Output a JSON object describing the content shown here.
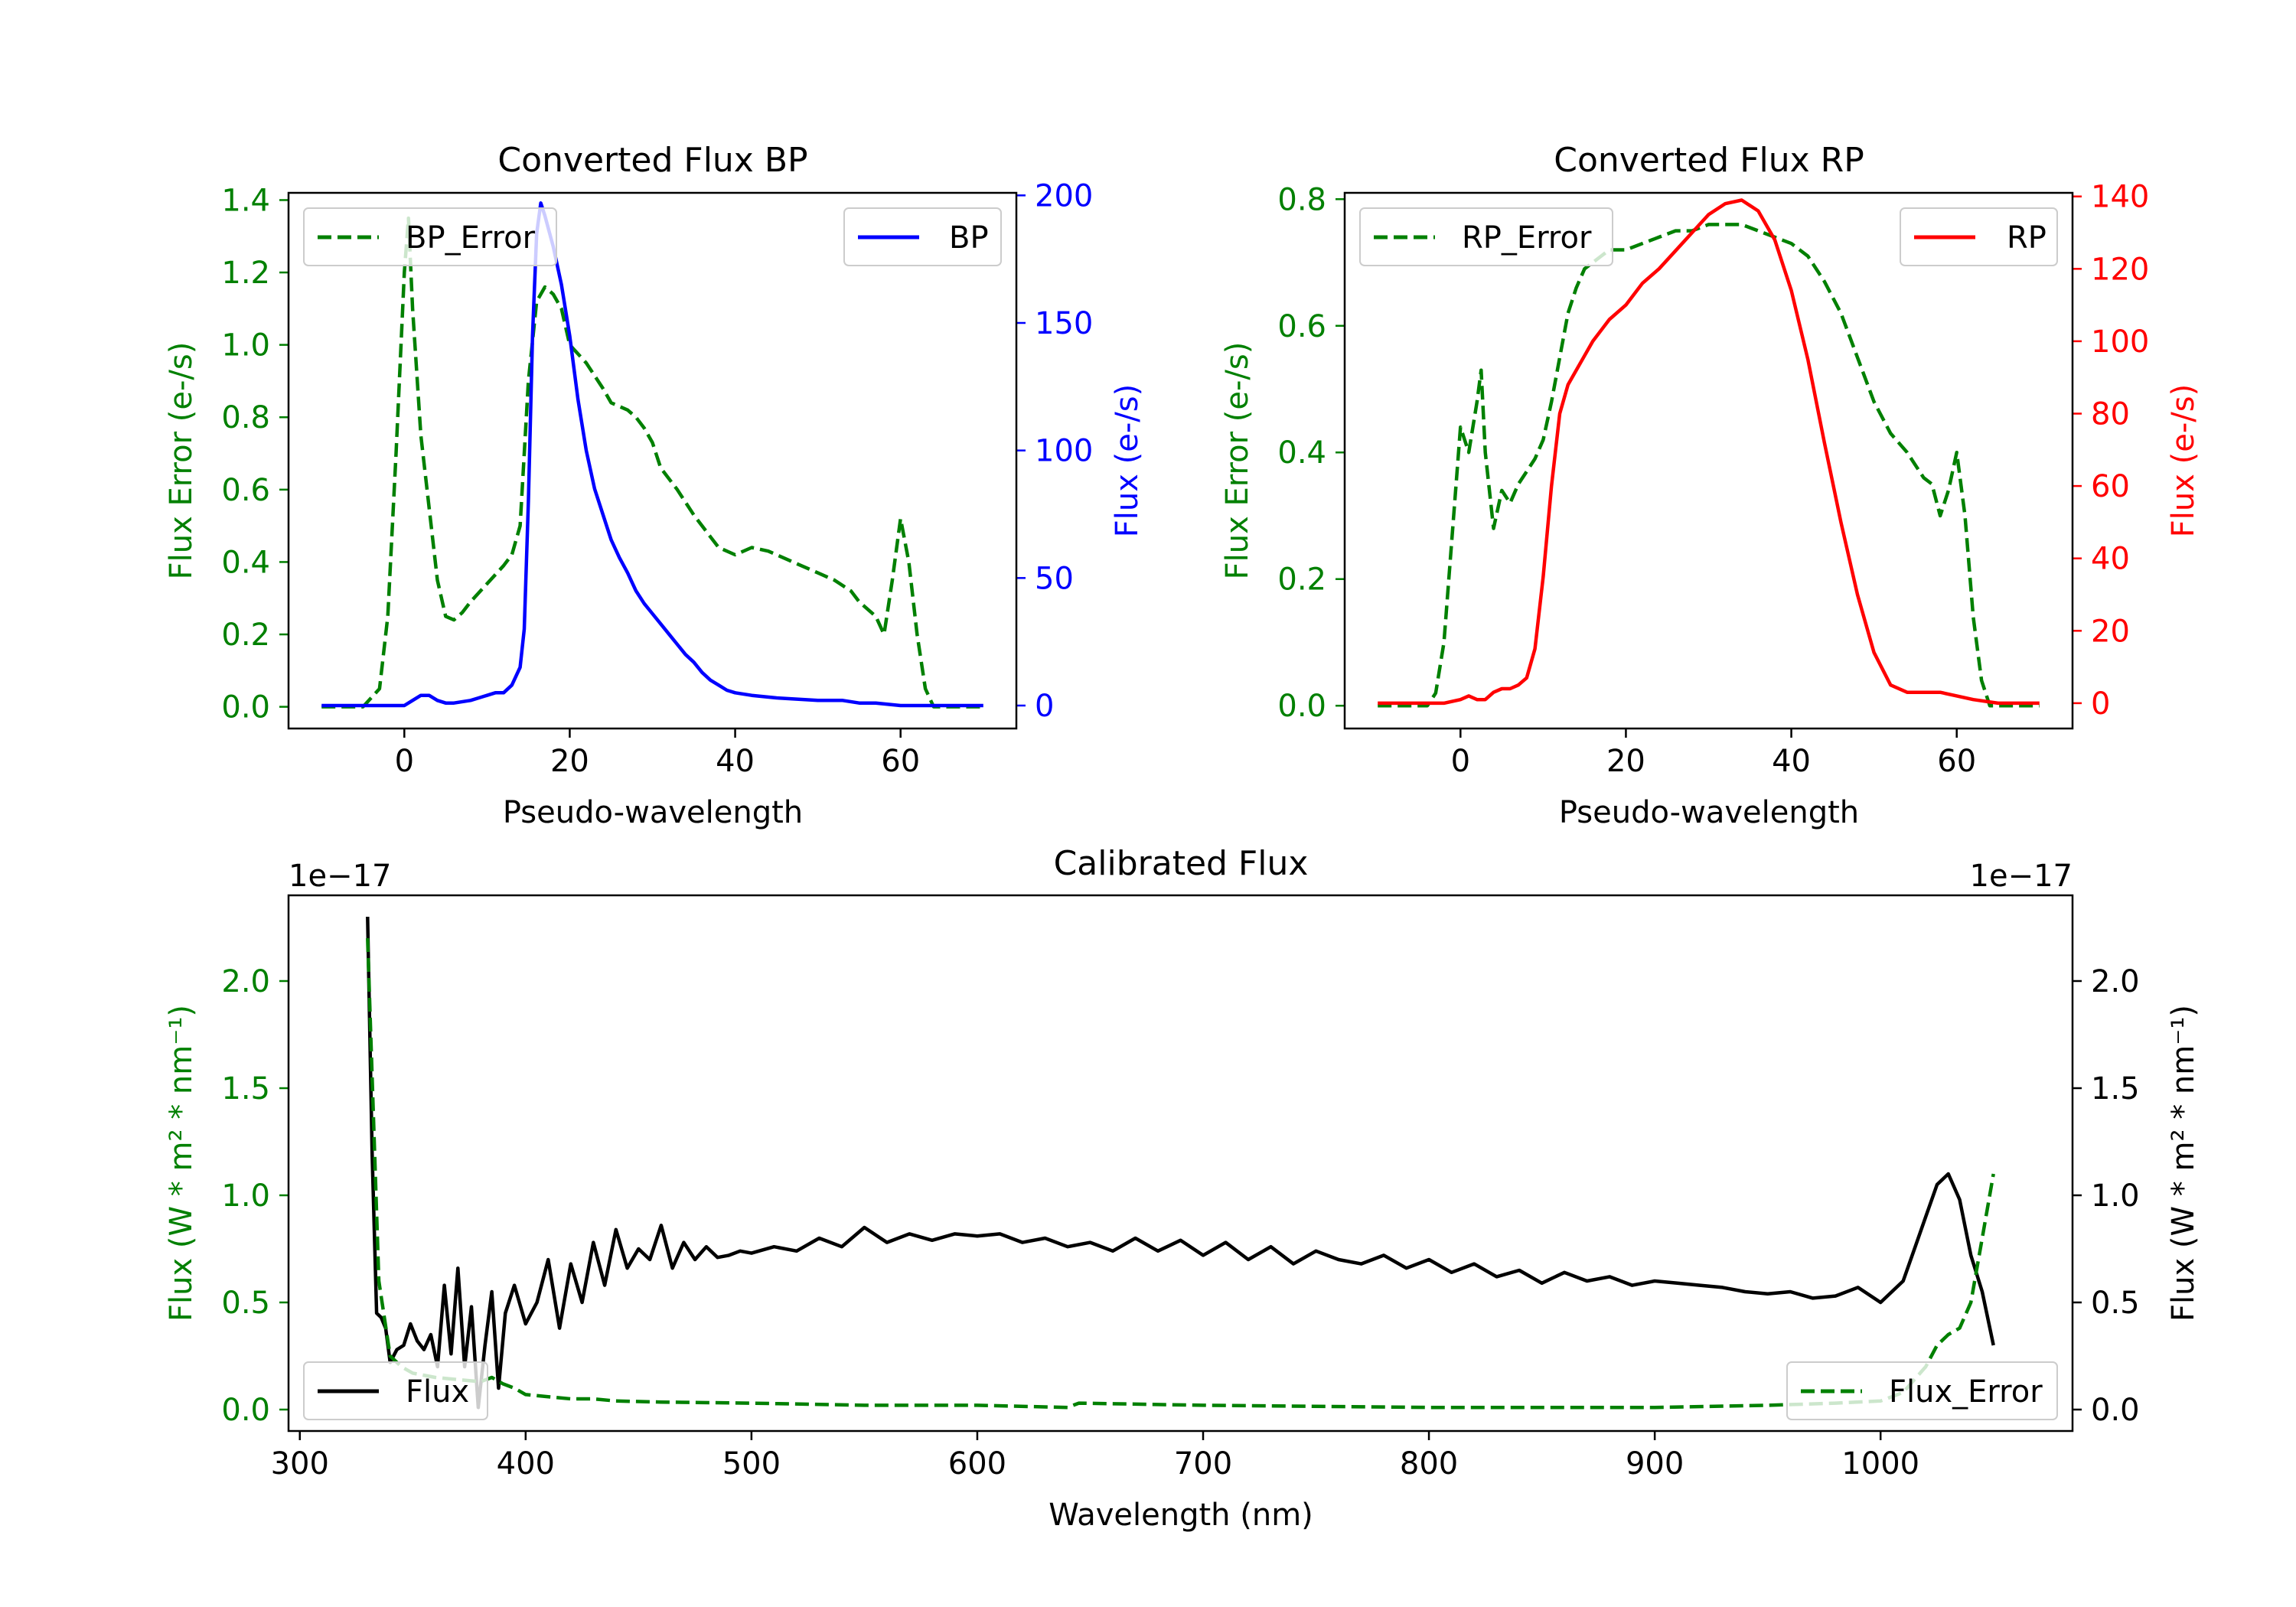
{
  "chart_data": [
    {
      "type": "line",
      "title": "Converted Flux BP",
      "xlabel": "Pseudo-wavelength",
      "ylabel_left": "Flux Error (e-/s)",
      "ylabel_right": "Flux (e-/s)",
      "xlim": [
        -14,
        74
      ],
      "ylim_left": [
        -0.06,
        1.42
      ],
      "ylim_right": [
        -9,
        201
      ],
      "x_ticks": [
        "0",
        "20",
        "40",
        "60"
      ],
      "y_ticks_left": [
        "0.0",
        "0.2",
        "0.4",
        "0.6",
        "0.8",
        "1.0",
        "1.2",
        "1.4"
      ],
      "y_ticks_right": [
        "0",
        "50",
        "100",
        "150",
        "200"
      ],
      "colors": {
        "error": "#008000",
        "flux": "#0000ff",
        "left_axis": "#008000",
        "right_axis": "#0000ff"
      },
      "legend_left": {
        "label": "BP_Error",
        "placement": "upper-left"
      },
      "legend_right": {
        "label": "BP",
        "placement": "upper-right"
      },
      "series": [
        {
          "name": "BP_Error",
          "axis": "left",
          "style": "dashed",
          "color": "#008000",
          "x": [
            -10,
            -5,
            -3,
            -2,
            -1,
            0,
            0.5,
            1,
            2,
            3,
            4,
            5,
            6,
            7,
            8,
            10,
            12,
            13,
            14,
            15,
            16,
            17,
            18,
            19,
            20,
            22,
            24,
            25,
            27,
            28,
            29,
            30,
            31,
            33,
            35,
            37,
            38,
            40,
            42,
            44,
            46,
            48,
            50,
            52,
            54,
            55,
            57,
            58,
            59,
            60,
            61,
            62,
            63,
            64,
            65,
            67,
            70
          ],
          "y": [
            0.0,
            0.0,
            0.05,
            0.25,
            0.7,
            1.2,
            1.35,
            1.1,
            0.75,
            0.55,
            0.35,
            0.25,
            0.24,
            0.26,
            0.29,
            0.34,
            0.39,
            0.42,
            0.5,
            0.9,
            1.12,
            1.16,
            1.14,
            1.1,
            1.0,
            0.95,
            0.88,
            0.84,
            0.82,
            0.8,
            0.77,
            0.73,
            0.66,
            0.6,
            0.53,
            0.47,
            0.44,
            0.42,
            0.44,
            0.43,
            0.41,
            0.39,
            0.37,
            0.35,
            0.32,
            0.29,
            0.25,
            0.2,
            0.35,
            0.52,
            0.4,
            0.2,
            0.05,
            0.0,
            0.0,
            0.0,
            0.0
          ]
        },
        {
          "name": "BP",
          "axis": "right",
          "style": "solid",
          "color": "#0000ff",
          "x": [
            -10,
            -5,
            0,
            1,
            2,
            3,
            4,
            5,
            6,
            8,
            9,
            10,
            11,
            12,
            13,
            14,
            14.5,
            15,
            15.5,
            16,
            16.5,
            17,
            18,
            19,
            20,
            21,
            22,
            23,
            24,
            25,
            26,
            27,
            28,
            29,
            30,
            31,
            32,
            33,
            34,
            35,
            36,
            37,
            38,
            39,
            40,
            42,
            45,
            50,
            53,
            55,
            57,
            60,
            62,
            65,
            70
          ],
          "y": [
            0,
            0,
            0,
            2,
            4,
            4,
            2,
            1,
            1,
            2,
            3,
            4,
            5,
            5,
            8,
            15,
            30,
            80,
            145,
            185,
            197,
            192,
            180,
            165,
            145,
            120,
            100,
            85,
            75,
            65,
            58,
            52,
            45,
            40,
            36,
            32,
            28,
            24,
            20,
            17,
            13,
            10,
            8,
            6,
            5,
            4,
            3,
            2,
            2,
            1,
            1,
            0,
            0,
            0,
            0
          ]
        }
      ]
    },
    {
      "type": "line",
      "title": "Converted Flux RP",
      "xlabel": "Pseudo-wavelength",
      "ylabel_left": "Flux Error (e-/s)",
      "ylabel_right": "Flux (e-/s)",
      "xlim": [
        -14,
        74
      ],
      "ylim_left": [
        -0.036,
        0.81
      ],
      "ylim_right": [
        -7,
        141
      ],
      "x_ticks": [
        "0",
        "20",
        "40",
        "60"
      ],
      "y_ticks_left": [
        "0.0",
        "0.2",
        "0.4",
        "0.6",
        "0.8"
      ],
      "y_ticks_right": [
        "0",
        "20",
        "40",
        "60",
        "80",
        "100",
        "120",
        "140"
      ],
      "colors": {
        "error": "#008000",
        "flux": "#ff0000",
        "left_axis": "#008000",
        "right_axis": "#ff0000"
      },
      "legend_left": {
        "label": "RP_Error",
        "placement": "upper-left"
      },
      "legend_right": {
        "label": "RP",
        "placement": "upper-right"
      },
      "series": [
        {
          "name": "RP_Error",
          "axis": "left",
          "style": "dashed",
          "color": "#008000",
          "x": [
            -10,
            -5,
            -4,
            -3,
            -2,
            -1,
            0,
            1,
            2,
            2.5,
            3,
            4,
            5,
            6,
            7,
            8,
            9,
            10,
            11,
            12,
            13,
            14,
            15,
            16,
            18,
            20,
            22,
            24,
            26,
            28,
            30,
            32,
            34,
            36,
            38,
            40,
            42,
            44,
            46,
            48,
            50,
            52,
            54,
            55,
            56,
            57,
            58,
            59,
            60,
            61,
            62,
            63,
            64,
            65,
            67,
            70
          ],
          "y": [
            0.0,
            0.0,
            0.0,
            0.02,
            0.1,
            0.27,
            0.44,
            0.4,
            0.48,
            0.53,
            0.4,
            0.28,
            0.34,
            0.32,
            0.35,
            0.37,
            0.39,
            0.42,
            0.48,
            0.55,
            0.62,
            0.66,
            0.69,
            0.7,
            0.72,
            0.72,
            0.73,
            0.74,
            0.75,
            0.75,
            0.76,
            0.76,
            0.76,
            0.75,
            0.74,
            0.73,
            0.71,
            0.67,
            0.62,
            0.55,
            0.48,
            0.43,
            0.4,
            0.38,
            0.36,
            0.35,
            0.3,
            0.34,
            0.4,
            0.3,
            0.14,
            0.04,
            0.0,
            0.0,
            0.0,
            0.0
          ]
        },
        {
          "name": "RP",
          "axis": "right",
          "style": "solid",
          "color": "#ff0000",
          "x": [
            -10,
            -5,
            -2,
            0,
            1,
            2,
            3,
            4,
            5,
            6,
            7,
            8,
            9,
            10,
            11,
            12,
            13,
            14,
            15,
            16,
            17,
            18,
            20,
            22,
            24,
            26,
            28,
            30,
            32,
            34,
            36,
            38,
            40,
            42,
            44,
            46,
            48,
            50,
            52,
            54,
            56,
            58,
            60,
            62,
            65,
            70
          ],
          "y": [
            0,
            0,
            0,
            1,
            2,
            1,
            1,
            3,
            4,
            4,
            5,
            7,
            15,
            35,
            60,
            80,
            88,
            92,
            96,
            100,
            103,
            106,
            110,
            116,
            120,
            125,
            130,
            135,
            138,
            139,
            136,
            128,
            114,
            95,
            72,
            50,
            30,
            14,
            5,
            3,
            3,
            3,
            2,
            1,
            0,
            0
          ]
        }
      ]
    },
    {
      "type": "line",
      "title": "Calibrated Flux",
      "xlabel": "Wavelength (nm)",
      "ylabel_left": "Flux (W * m² * nm⁻¹)",
      "ylabel_right": "Flux (W * m² * nm⁻¹)",
      "offset_left": "1e−17",
      "offset_right": "1e−17",
      "xlim": [
        295,
        1085
      ],
      "ylim_left": [
        -0.1,
        2.4
      ],
      "ylim_right": [
        -0.1,
        2.4
      ],
      "x_ticks": [
        "300",
        "400",
        "500",
        "600",
        "700",
        "800",
        "900",
        "1000"
      ],
      "y_ticks_left": [
        "0.0",
        "0.5",
        "1.0",
        "1.5",
        "2.0"
      ],
      "y_ticks_right": [
        "0.0",
        "0.5",
        "1.0",
        "1.5",
        "2.0"
      ],
      "colors": {
        "error": "#008000",
        "flux": "#000000",
        "left_axis": "#008000",
        "right_axis": "#000000"
      },
      "legend_left": {
        "label": "Flux",
        "placement": "lower-left"
      },
      "legend_right": {
        "label": "Flux_Error",
        "placement": "lower-right"
      },
      "series": [
        {
          "name": "Flux",
          "axis": "left",
          "style": "solid",
          "color": "#000000",
          "x": [
            330,
            332,
            334,
            336,
            338,
            340,
            343,
            346,
            349,
            352,
            355,
            358,
            361,
            364,
            367,
            370,
            373,
            376,
            379,
            382,
            385,
            388,
            391,
            395,
            400,
            405,
            410,
            415,
            420,
            425,
            430,
            435,
            440,
            445,
            450,
            455,
            460,
            465,
            470,
            475,
            480,
            485,
            490,
            495,
            500,
            510,
            520,
            530,
            540,
            550,
            560,
            570,
            580,
            590,
            600,
            610,
            620,
            630,
            640,
            650,
            660,
            670,
            680,
            690,
            700,
            710,
            720,
            730,
            740,
            750,
            760,
            770,
            780,
            790,
            800,
            810,
            820,
            830,
            840,
            850,
            860,
            870,
            880,
            890,
            900,
            910,
            920,
            930,
            940,
            950,
            960,
            970,
            980,
            990,
            1000,
            1010,
            1015,
            1020,
            1025,
            1030,
            1035,
            1040,
            1045,
            1050
          ],
          "y": [
            2.3,
            1.2,
            0.45,
            0.43,
            0.38,
            0.22,
            0.28,
            0.3,
            0.4,
            0.32,
            0.28,
            0.35,
            0.2,
            0.58,
            0.26,
            0.66,
            0.2,
            0.48,
            0.01,
            0.3,
            0.55,
            0.1,
            0.45,
            0.58,
            0.4,
            0.5,
            0.7,
            0.38,
            0.68,
            0.5,
            0.78,
            0.58,
            0.84,
            0.66,
            0.75,
            0.7,
            0.86,
            0.66,
            0.78,
            0.7,
            0.76,
            0.71,
            0.72,
            0.74,
            0.73,
            0.76,
            0.74,
            0.8,
            0.76,
            0.85,
            0.78,
            0.82,
            0.79,
            0.82,
            0.81,
            0.82,
            0.78,
            0.8,
            0.76,
            0.78,
            0.74,
            0.8,
            0.74,
            0.79,
            0.72,
            0.78,
            0.7,
            0.76,
            0.68,
            0.74,
            0.7,
            0.68,
            0.72,
            0.66,
            0.7,
            0.64,
            0.68,
            0.62,
            0.65,
            0.59,
            0.64,
            0.6,
            0.62,
            0.58,
            0.6,
            0.59,
            0.58,
            0.57,
            0.55,
            0.54,
            0.55,
            0.52,
            0.53,
            0.57,
            0.5,
            0.6,
            0.75,
            0.9,
            1.05,
            1.1,
            0.98,
            0.72,
            0.55,
            0.3
          ]
        },
        {
          "name": "Flux_Error",
          "axis": "right",
          "style": "dashed",
          "color": "#008000",
          "x": [
            330,
            335,
            340,
            345,
            350,
            360,
            370,
            380,
            385,
            390,
            395,
            400,
            410,
            420,
            430,
            440,
            460,
            500,
            550,
            600,
            640,
            645,
            700,
            800,
            900,
            950,
            980,
            1000,
            1010,
            1020,
            1025,
            1030,
            1035,
            1040,
            1045,
            1050
          ],
          "y": [
            2.2,
            0.6,
            0.25,
            0.2,
            0.17,
            0.15,
            0.14,
            0.13,
            0.15,
            0.12,
            0.1,
            0.07,
            0.06,
            0.05,
            0.05,
            0.04,
            0.035,
            0.03,
            0.02,
            0.02,
            0.01,
            0.03,
            0.02,
            0.01,
            0.01,
            0.02,
            0.03,
            0.04,
            0.08,
            0.2,
            0.3,
            0.35,
            0.38,
            0.5,
            0.8,
            1.1
          ]
        }
      ]
    }
  ]
}
